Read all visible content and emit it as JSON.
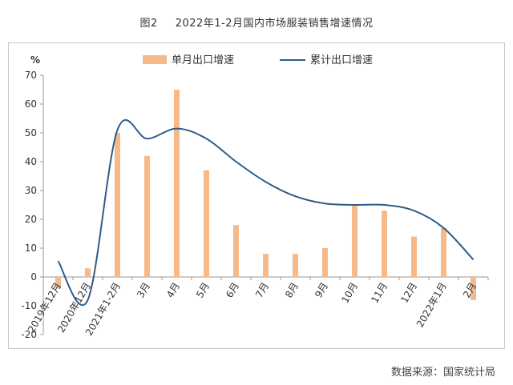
{
  "figure": {
    "number": "图2",
    "title": "2022年1-2月国内市场服装销售增速情况"
  },
  "source": "数据来源：国家统计局",
  "chart_data": {
    "type": "bar+line",
    "title": "2022年1-2月国内市场服装销售增速情况",
    "yunit": "%",
    "ylim": [
      -20,
      70
    ],
    "yticks": [
      -20,
      -10,
      0,
      10,
      20,
      30,
      40,
      50,
      60,
      70
    ],
    "grid": false,
    "legend_position": "top",
    "categories": [
      "2019年12月",
      "2020年12月",
      "2021年1-2月",
      "3月",
      "4月",
      "5月",
      "6月",
      "7月",
      "8月",
      "9月",
      "10月",
      "11月",
      "12月",
      "2022年1月",
      "2月"
    ],
    "series": [
      {
        "name": "单月出口增速",
        "kind": "bar",
        "color": "#f6b98a",
        "values": [
          -4,
          3,
          50,
          42,
          65,
          37,
          18,
          8,
          8,
          10,
          25,
          23,
          14,
          17,
          -8
        ]
      },
      {
        "name": "累计出口增速",
        "kind": "line",
        "color": "#2f5d8a",
        "values": [
          5.5,
          -8,
          51,
          48,
          51.5,
          48,
          40,
          33,
          28,
          25.5,
          25,
          25,
          23,
          17,
          6
        ]
      }
    ]
  }
}
